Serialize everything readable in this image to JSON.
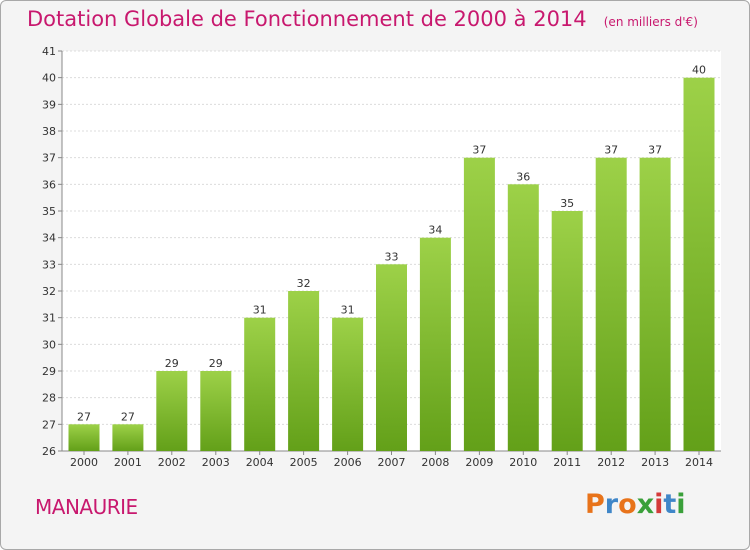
{
  "header": {
    "title": "Dotation Globale de Fonctionnement de 2000 à 2014",
    "subtitle": "(en milliers d'€)"
  },
  "footer": {
    "commune": "MANAURIE",
    "logo_text": "Proxiti"
  },
  "colors": {
    "accent": "#c8186e",
    "bar_top": "#9dd148",
    "bar_bottom": "#63a019",
    "logo_letters": [
      "#e8731a",
      "#3f86c8",
      "#e8731a",
      "#3aa03a",
      "#d43a3a",
      "#3f86c8",
      "#3aa03a"
    ]
  },
  "chart_data": {
    "type": "bar",
    "title": "Dotation Globale de Fonctionnement de 2000 à 2014",
    "subtitle": "(en milliers d'€)",
    "xlabel": "",
    "ylabel": "",
    "ylim": [
      26,
      41
    ],
    "yticks": [
      26,
      27,
      28,
      29,
      30,
      31,
      32,
      33,
      34,
      35,
      36,
      37,
      38,
      39,
      40,
      41
    ],
    "grid": true,
    "categories": [
      "2000",
      "2001",
      "2002",
      "2003",
      "2004",
      "2005",
      "2006",
      "2007",
      "2008",
      "2009",
      "2010",
      "2011",
      "2012",
      "2013",
      "2014"
    ],
    "values": [
      27,
      27,
      29,
      29,
      31,
      32,
      31,
      33,
      34,
      37,
      36,
      35,
      37,
      37,
      40
    ]
  }
}
